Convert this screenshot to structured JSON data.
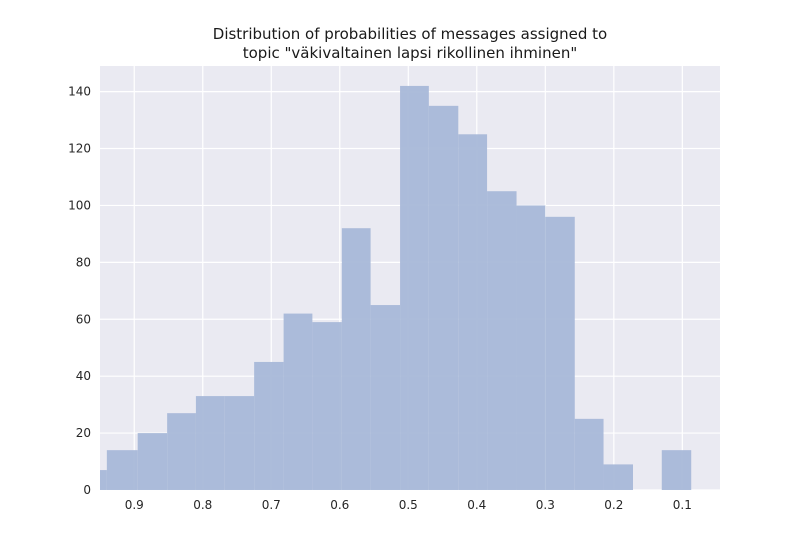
{
  "chart_data": {
    "type": "bar",
    "title_lines": [
      "Distribution of probabilities of messages assigned to",
      "topic \"väkivaltainen lapsi rikollinen ihminen\""
    ],
    "xlabel": "",
    "ylabel": "",
    "x_axis_reversed": true,
    "xlim": [
      0.95,
      0.045
    ],
    "ylim": [
      0,
      149
    ],
    "xticks": [
      0.9,
      0.8,
      0.7,
      0.6,
      0.5,
      0.4,
      0.3,
      0.2,
      0.1
    ],
    "xtick_labels": [
      "0.9",
      "0.8",
      "0.7",
      "0.6",
      "0.5",
      "0.4",
      "0.3",
      "0.2",
      "0.1"
    ],
    "yticks": [
      0,
      20,
      40,
      60,
      80,
      100,
      120,
      140
    ],
    "ytick_labels": [
      "0",
      "20",
      "40",
      "60",
      "80",
      "100",
      "120",
      "140"
    ],
    "grid": true,
    "bars": [
      {
        "x_start": 0.95,
        "x_end": 0.94,
        "value": 7
      },
      {
        "x_start": 0.94,
        "x_end": 0.895,
        "value": 14
      },
      {
        "x_start": 0.895,
        "x_end": 0.852,
        "value": 20
      },
      {
        "x_start": 0.852,
        "x_end": 0.81,
        "value": 27
      },
      {
        "x_start": 0.81,
        "x_end": 0.768,
        "value": 33
      },
      {
        "x_start": 0.768,
        "x_end": 0.725,
        "value": 33
      },
      {
        "x_start": 0.725,
        "x_end": 0.682,
        "value": 45
      },
      {
        "x_start": 0.682,
        "x_end": 0.64,
        "value": 62
      },
      {
        "x_start": 0.64,
        "x_end": 0.597,
        "value": 59
      },
      {
        "x_start": 0.597,
        "x_end": 0.555,
        "value": 92
      },
      {
        "x_start": 0.555,
        "x_end": 0.512,
        "value": 65
      },
      {
        "x_start": 0.512,
        "x_end": 0.47,
        "value": 142
      },
      {
        "x_start": 0.47,
        "x_end": 0.427,
        "value": 135
      },
      {
        "x_start": 0.427,
        "x_end": 0.385,
        "value": 125
      },
      {
        "x_start": 0.385,
        "x_end": 0.342,
        "value": 105
      },
      {
        "x_start": 0.342,
        "x_end": 0.3,
        "value": 100
      },
      {
        "x_start": 0.3,
        "x_end": 0.257,
        "value": 96
      },
      {
        "x_start": 0.257,
        "x_end": 0.215,
        "value": 25
      },
      {
        "x_start": 0.215,
        "x_end": 0.172,
        "value": 9
      },
      {
        "x_start": 0.172,
        "x_end": 0.13,
        "value": 0
      },
      {
        "x_start": 0.13,
        "x_end": 0.087,
        "value": 14
      }
    ],
    "colors": {
      "background": "#eaeaf2",
      "grid": "#ffffff",
      "bar": "#a8b8d8"
    }
  }
}
